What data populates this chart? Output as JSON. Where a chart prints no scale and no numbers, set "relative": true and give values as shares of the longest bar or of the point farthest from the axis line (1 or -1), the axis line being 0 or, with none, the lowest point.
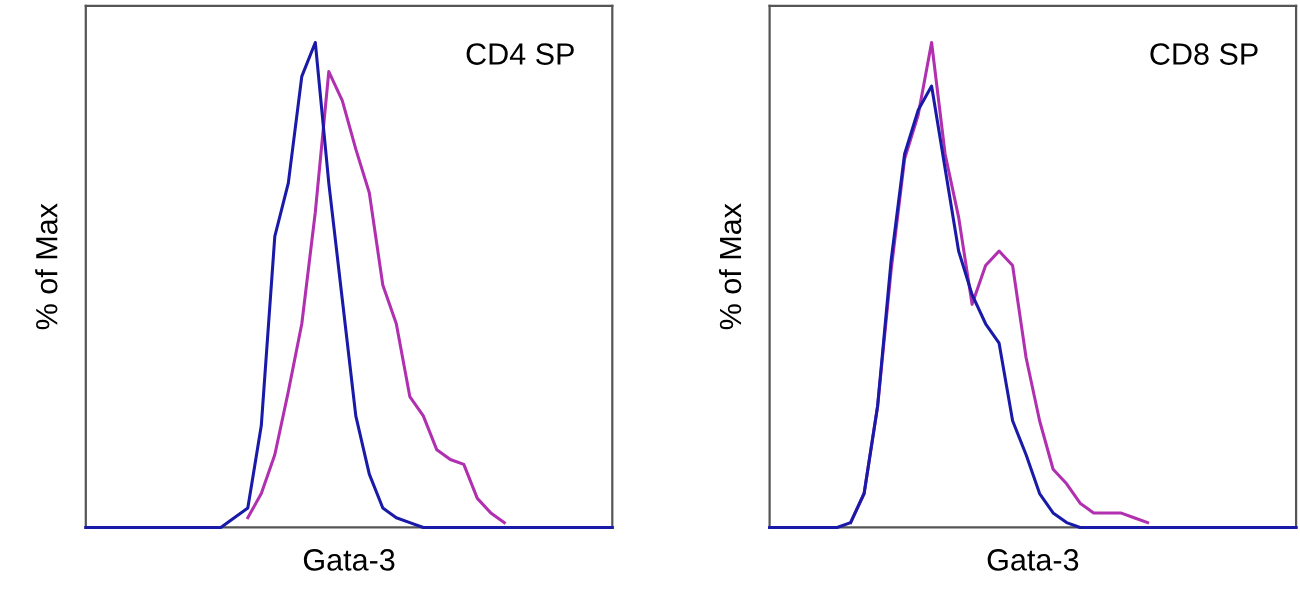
{
  "chart_data": [
    {
      "type": "line",
      "title": "CD4 SP",
      "xlabel": "Gata-3",
      "ylabel": "% of Max",
      "relative": true,
      "grid": false,
      "legend": false,
      "marker": "none",
      "line_style": "solid",
      "categories": [
        null,
        null,
        null,
        null,
        null,
        null,
        null,
        null,
        null,
        null,
        null,
        null,
        null,
        null,
        null,
        null,
        null,
        null,
        null,
        null,
        null,
        null,
        null,
        null,
        null,
        null,
        null,
        null,
        null,
        null,
        null,
        null,
        null,
        null,
        null,
        null,
        null,
        null,
        null,
        null
      ],
      "series": [
        {
          "color": "#b030b0",
          "values": [
            null,
            null,
            null,
            null,
            null,
            null,
            null,
            null,
            null,
            null,
            null,
            null,
            0.02,
            0.07,
            0.15,
            0.28,
            0.42,
            0.65,
            0.94,
            0.88,
            0.78,
            0.69,
            0.5,
            0.42,
            0.27,
            0.23,
            0.16,
            0.14,
            0.13,
            0.06,
            0.03,
            0.01,
            null,
            null,
            null,
            null,
            null,
            null,
            null,
            null
          ]
        },
        {
          "color": "#1a1aa8",
          "values": [
            0,
            0,
            0,
            0,
            0,
            0,
            0,
            0,
            0,
            0,
            0,
            0.02,
            0.04,
            0.21,
            0.6,
            0.71,
            0.93,
            1.0,
            0.71,
            0.47,
            0.23,
            0.11,
            0.04,
            0.02,
            0.01,
            0,
            0,
            0,
            0,
            0,
            0,
            0,
            0,
            0,
            0,
            0,
            0,
            0,
            0,
            0
          ]
        }
      ]
    },
    {
      "type": "line",
      "title": "CD8 SP",
      "xlabel": "Gata-3",
      "ylabel": "% of Max",
      "relative": true,
      "grid": false,
      "legend": false,
      "marker": "none",
      "line_style": "solid",
      "categories": [
        null,
        null,
        null,
        null,
        null,
        null,
        null,
        null,
        null,
        null,
        null,
        null,
        null,
        null,
        null,
        null,
        null,
        null,
        null,
        null,
        null,
        null,
        null,
        null,
        null,
        null,
        null,
        null,
        null,
        null,
        null,
        null,
        null,
        null,
        null,
        null,
        null,
        null,
        null,
        null
      ],
      "series": [
        {
          "color": "#b030b0",
          "values": [
            null,
            null,
            null,
            null,
            null,
            null,
            0.01,
            0.07,
            0.25,
            0.53,
            0.76,
            0.85,
            1.0,
            0.77,
            0.64,
            0.46,
            0.54,
            0.57,
            0.54,
            0.35,
            0.22,
            0.12,
            0.09,
            0.05,
            0.03,
            0.03,
            0.03,
            0.02,
            0.01,
            null,
            null,
            null,
            null,
            null,
            null,
            null,
            null,
            null,
            null,
            null
          ]
        },
        {
          "color": "#1a1aa8",
          "values": [
            0,
            0,
            0,
            0,
            0,
            0,
            0.01,
            0.07,
            0.25,
            0.55,
            0.77,
            0.86,
            0.91,
            0.74,
            0.57,
            0.48,
            0.42,
            0.38,
            0.22,
            0.15,
            0.07,
            0.03,
            0.01,
            0,
            0,
            0,
            0,
            0,
            0,
            0,
            0,
            0,
            0,
            0,
            0,
            0,
            0,
            0,
            0,
            0
          ]
        }
      ]
    }
  ]
}
